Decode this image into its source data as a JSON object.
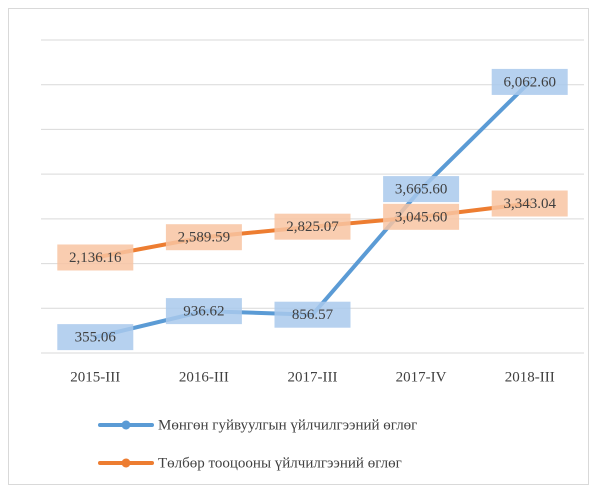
{
  "chart_data": {
    "type": "line",
    "categories": [
      "2015-III",
      "2016-III",
      "2017-III",
      "2017-IV",
      "2018-III"
    ],
    "series": [
      {
        "name": "Мөнгөн гуйвуулгын үйлчилгээний өглөг",
        "color": "#5b9bd5",
        "label_fill": "#a9c9ec",
        "values": [
          355.06,
          936.62,
          856.57,
          3665.6,
          6062.6
        ],
        "value_labels": [
          "355.06",
          "936.62",
          "856.57",
          "3,665.60",
          "6,062.60"
        ]
      },
      {
        "name": "Төлбөр тооцооны үйлчилгээний өглөг",
        "color": "#ed7d31",
        "label_fill": "#f8c4a2",
        "values": [
          2136.16,
          2589.59,
          2825.07,
          3045.6,
          3343.04
        ],
        "value_labels": [
          "2,136.16",
          "2,589.59",
          "2,825.07",
          "3,045.60",
          "3,343.04"
        ]
      }
    ],
    "ylim": [
      0,
      7000
    ],
    "yticks": [
      0,
      1000,
      2000,
      3000,
      4000,
      5000,
      6000,
      7000
    ],
    "grid": true,
    "show_ytick_labels": false,
    "legend": "bottom"
  }
}
